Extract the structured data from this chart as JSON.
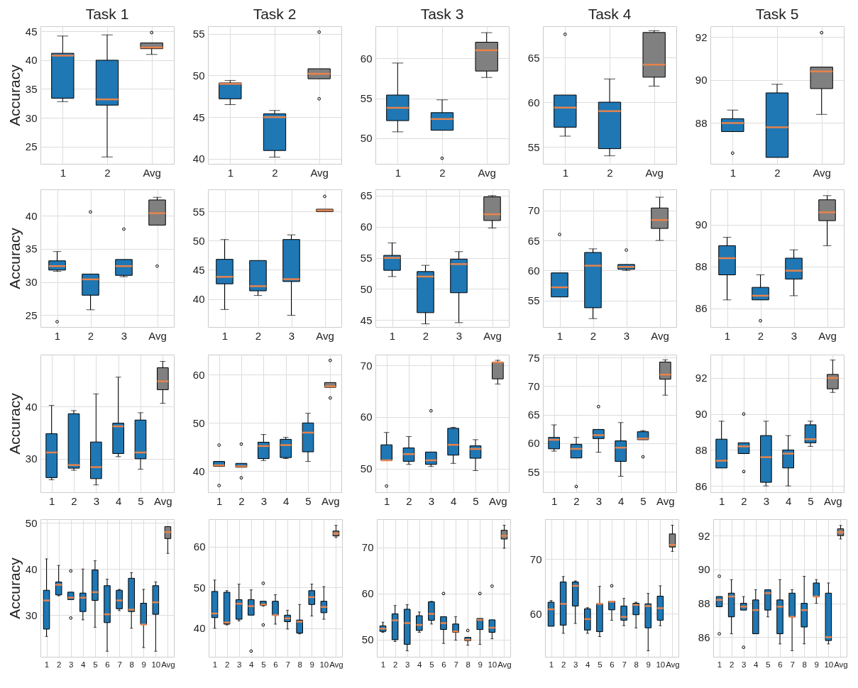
{
  "chart_data": [
    {
      "type": "box",
      "title": "Task 1",
      "ylabel": "Accuracy",
      "categories": [
        "1",
        "2",
        "Avg"
      ],
      "colors": [
        "#1f77b4",
        "#1f77b4",
        "#808080"
      ],
      "ylim": [
        22.0,
        45.9
      ],
      "yticks": [
        25,
        30,
        35,
        40,
        45
      ],
      "grid": true,
      "boxes": [
        {
          "low": 32.8,
          "q1": 33.4,
          "median": 40.8,
          "q3": 41.2,
          "high": 44.2
        },
        {
          "low": 23.2,
          "q1": 32.2,
          "median": 33.2,
          "q3": 40.0,
          "high": 44.4
        },
        {
          "low": 41.0,
          "q1": 42.0,
          "median": 42.2,
          "q3": 43.0,
          "high": 43.0,
          "outliers": [
            44.8
          ]
        }
      ]
    },
    {
      "type": "box",
      "title": "Task 2",
      "categories": [
        "1",
        "2",
        "Avg"
      ],
      "colors": [
        "#1f77b4",
        "#1f77b4",
        "#808080"
      ],
      "ylim": [
        39.4,
        55.9
      ],
      "yticks": [
        40,
        45,
        50,
        55
      ],
      "grid": true,
      "boxes": [
        {
          "low": 46.5,
          "q1": 47.2,
          "median": 49.0,
          "q3": 49.1,
          "high": 49.4
        },
        {
          "low": 40.2,
          "q1": 41.0,
          "median": 45.0,
          "q3": 45.4,
          "high": 45.8
        },
        {
          "low": 49.6,
          "q1": 49.6,
          "median": 50.2,
          "q3": 50.8,
          "high": 50.8,
          "outliers": [
            55.2,
            47.2
          ]
        }
      ]
    },
    {
      "type": "box",
      "title": "Task 3",
      "categories": [
        "1",
        "2",
        "Avg"
      ],
      "colors": [
        "#1f77b4",
        "#1f77b4",
        "#808080"
      ],
      "ylim": [
        46.8,
        64.0
      ],
      "yticks": [
        50,
        55,
        60
      ],
      "grid": true,
      "boxes": [
        {
          "low": 50.8,
          "q1": 52.2,
          "median": 53.8,
          "q3": 55.4,
          "high": 59.4
        },
        {
          "low": 51.0,
          "q1": 51.0,
          "median": 52.4,
          "q3": 53.2,
          "high": 54.8,
          "outliers": [
            47.5
          ]
        },
        {
          "low": 57.6,
          "q1": 58.4,
          "median": 61.0,
          "q3": 62.0,
          "high": 63.2
        }
      ]
    },
    {
      "type": "box",
      "title": "Task 4",
      "categories": [
        "1",
        "2",
        "Avg"
      ],
      "colors": [
        "#1f77b4",
        "#1f77b4",
        "#808080"
      ],
      "ylim": [
        53.1,
        68.5
      ],
      "yticks": [
        55,
        60,
        65
      ],
      "grid": true,
      "boxes": [
        {
          "low": 56.2,
          "q1": 57.2,
          "median": 59.4,
          "q3": 60.8,
          "high": 60.8,
          "outliers": [
            67.6
          ]
        },
        {
          "low": 54.0,
          "q1": 54.8,
          "median": 59.0,
          "q3": 60.0,
          "high": 62.6
        },
        {
          "low": 61.8,
          "q1": 62.8,
          "median": 64.2,
          "q3": 67.8,
          "high": 68.0
        }
      ]
    },
    {
      "type": "box",
      "title": "Task 5",
      "categories": [
        "1",
        "2",
        "Avg"
      ],
      "colors": [
        "#1f77b4",
        "#1f77b4",
        "#808080"
      ],
      "ylim": [
        86.1,
        92.5
      ],
      "yticks": [
        88,
        90,
        92
      ],
      "grid": true,
      "boxes": [
        {
          "low": 87.6,
          "q1": 87.6,
          "median": 88.0,
          "q3": 88.2,
          "high": 88.6,
          "outliers": [
            86.6
          ]
        },
        {
          "low": 86.4,
          "q1": 86.4,
          "median": 87.8,
          "q3": 89.4,
          "high": 89.8
        },
        {
          "low": 88.4,
          "q1": 89.6,
          "median": 90.4,
          "q3": 90.6,
          "high": 90.6,
          "outliers": [
            92.2
          ]
        }
      ]
    },
    {
      "type": "box",
      "ylabel": "Accuracy",
      "categories": [
        "1",
        "2",
        "3",
        "Avg"
      ],
      "colors": [
        "#1f77b4",
        "#1f77b4",
        "#1f77b4",
        "#808080"
      ],
      "ylim": [
        23.2,
        44.0
      ],
      "yticks": [
        25,
        30,
        35,
        40
      ],
      "grid": true,
      "boxes": [
        {
          "low": 31.6,
          "q1": 31.8,
          "median": 32.4,
          "q3": 33.2,
          "high": 34.6,
          "outliers": [
            24.0
          ]
        },
        {
          "low": 25.8,
          "q1": 28.0,
          "median": 30.4,
          "q3": 31.2,
          "high": 31.2,
          "outliers": [
            40.6
          ]
        },
        {
          "low": 30.8,
          "q1": 31.0,
          "median": 32.4,
          "q3": 33.4,
          "high": 33.4,
          "outliers": [
            38.0
          ]
        },
        {
          "low": 38.6,
          "q1": 38.6,
          "median": 40.4,
          "q3": 42.4,
          "high": 42.8,
          "outliers": [
            32.4
          ]
        }
      ]
    },
    {
      "type": "box",
      "categories": [
        "1",
        "2",
        "3",
        "Avg"
      ],
      "colors": [
        "#1f77b4",
        "#1f77b4",
        "#1f77b4",
        "#808080"
      ],
      "ylim": [
        35.2,
        58.8
      ],
      "yticks": [
        40,
        45,
        50,
        55
      ],
      "grid": true,
      "boxes": [
        {
          "low": 38.2,
          "q1": 42.6,
          "median": 43.8,
          "q3": 46.8,
          "high": 50.2
        },
        {
          "low": 40.6,
          "q1": 41.4,
          "median": 42.2,
          "q3": 46.6,
          "high": 46.6
        },
        {
          "low": 37.2,
          "q1": 43.0,
          "median": 43.4,
          "q3": 50.2,
          "high": 51.0
        },
        {
          "low": 55.0,
          "q1": 55.0,
          "median": 55.2,
          "q3": 55.4,
          "high": 55.4,
          "outliers": [
            57.6
          ]
        }
      ]
    },
    {
      "type": "box",
      "categories": [
        "1",
        "2",
        "3",
        "Avg"
      ],
      "colors": [
        "#1f77b4",
        "#1f77b4",
        "#1f77b4",
        "#808080"
      ],
      "ylim": [
        43.9,
        66.0
      ],
      "yticks": [
        45,
        50,
        55,
        60,
        65
      ],
      "grid": true,
      "boxes": [
        {
          "low": 52.0,
          "q1": 53.0,
          "median": 55.0,
          "q3": 55.4,
          "high": 57.4
        },
        {
          "low": 44.4,
          "q1": 46.2,
          "median": 52.0,
          "q3": 52.8,
          "high": 53.8
        },
        {
          "low": 44.6,
          "q1": 49.4,
          "median": 54.0,
          "q3": 54.8,
          "high": 56.0
        },
        {
          "low": 59.8,
          "q1": 61.0,
          "median": 62.0,
          "q3": 64.8,
          "high": 65.0
        }
      ]
    },
    {
      "type": "box",
      "categories": [
        "1",
        "2",
        "3",
        "Avg"
      ],
      "colors": [
        "#1f77b4",
        "#1f77b4",
        "#1f77b4",
        "#808080"
      ],
      "ylim": [
        50.6,
        73.5
      ],
      "yticks": [
        55,
        60,
        65,
        70
      ],
      "grid": true,
      "boxes": [
        {
          "low": 55.6,
          "q1": 55.6,
          "median": 57.2,
          "q3": 59.6,
          "high": 59.6,
          "outliers": [
            66.0
          ]
        },
        {
          "low": 52.0,
          "q1": 53.8,
          "median": 60.8,
          "q3": 63.0,
          "high": 63.6
        },
        {
          "low": 60.0,
          "q1": 60.2,
          "median": 60.6,
          "q3": 61.0,
          "high": 61.0,
          "outliers": [
            63.4
          ]
        },
        {
          "low": 65.0,
          "q1": 67.0,
          "median": 68.4,
          "q3": 70.4,
          "high": 72.2
        }
      ]
    },
    {
      "type": "box",
      "categories": [
        "1",
        "2",
        "3",
        "Avg"
      ],
      "colors": [
        "#1f77b4",
        "#1f77b4",
        "#1f77b4",
        "#808080"
      ],
      "ylim": [
        85.1,
        91.7
      ],
      "yticks": [
        86,
        88,
        90
      ],
      "grid": true,
      "boxes": [
        {
          "low": 86.4,
          "q1": 87.6,
          "median": 88.4,
          "q3": 89.0,
          "high": 89.4
        },
        {
          "low": 86.4,
          "q1": 86.4,
          "median": 86.6,
          "q3": 87.0,
          "high": 87.6,
          "outliers": [
            85.4
          ]
        },
        {
          "low": 86.6,
          "q1": 87.4,
          "median": 87.8,
          "q3": 88.4,
          "high": 88.8
        },
        {
          "low": 89.0,
          "q1": 90.2,
          "median": 90.6,
          "q3": 91.2,
          "high": 91.4
        }
      ]
    },
    {
      "type": "box",
      "ylabel": "Accuracy",
      "categories": [
        "1",
        "2",
        "3",
        "4",
        "5",
        "Avg"
      ],
      "colors": [
        "#1f77b4",
        "#1f77b4",
        "#1f77b4",
        "#1f77b4",
        "#1f77b4",
        "#808080"
      ],
      "ylim": [
        23.6,
        49.9
      ],
      "yticks": [
        30,
        40
      ],
      "grid": true,
      "boxes": [
        {
          "low": 26.0,
          "q1": 26.4,
          "median": 31.2,
          "q3": 34.8,
          "high": 40.2
        },
        {
          "low": 27.8,
          "q1": 28.2,
          "median": 28.8,
          "q3": 38.6,
          "high": 39.2
        },
        {
          "low": 25.0,
          "q1": 26.2,
          "median": 28.4,
          "q3": 33.2,
          "high": 42.4
        },
        {
          "low": 30.4,
          "q1": 31.0,
          "median": 36.2,
          "q3": 36.8,
          "high": 45.6
        },
        {
          "low": 28.0,
          "q1": 30.0,
          "median": 31.2,
          "q3": 37.4,
          "high": 38.8
        },
        {
          "low": 40.6,
          "q1": 43.2,
          "median": 44.8,
          "q3": 47.4,
          "high": 48.6
        }
      ]
    },
    {
      "type": "box",
      "categories": [
        "1",
        "2",
        "3",
        "4",
        "5",
        "Avg"
      ],
      "colors": [
        "#1f77b4",
        "#1f77b4",
        "#1f77b4",
        "#1f77b4",
        "#1f77b4",
        "#808080"
      ],
      "ylim": [
        35.6,
        64.2
      ],
      "yticks": [
        40,
        50,
        60
      ],
      "grid": true,
      "boxes": [
        {
          "low": 41.0,
          "q1": 41.0,
          "median": 41.2,
          "q3": 42.0,
          "high": 42.0,
          "outliers": [
            45.4,
            37.0
          ]
        },
        {
          "low": 40.8,
          "q1": 40.8,
          "median": 41.0,
          "q3": 41.6,
          "high": 41.6,
          "outliers": [
            45.6,
            38.6
          ]
        },
        {
          "low": 42.2,
          "q1": 42.6,
          "median": 45.2,
          "q3": 46.0,
          "high": 47.6
        },
        {
          "low": 42.6,
          "q1": 42.8,
          "median": 45.4,
          "q3": 46.6,
          "high": 47.0
        },
        {
          "low": 42.0,
          "q1": 44.0,
          "median": 48.0,
          "q3": 50.0,
          "high": 52.0
        },
        {
          "low": 57.4,
          "q1": 57.4,
          "median": 57.6,
          "q3": 58.4,
          "high": 58.4,
          "outliers": [
            63.0,
            55.2
          ]
        }
      ]
    },
    {
      "type": "box",
      "categories": [
        "1",
        "2",
        "3",
        "4",
        "5",
        "Avg"
      ],
      "colors": [
        "#1f77b4",
        "#1f77b4",
        "#1f77b4",
        "#1f77b4",
        "#1f77b4",
        "#808080"
      ],
      "ylim": [
        45.4,
        72.1
      ],
      "yticks": [
        50,
        60,
        70
      ],
      "grid": true,
      "boxes": [
        {
          "low": 51.6,
          "q1": 51.6,
          "median": 51.6,
          "q3": 54.6,
          "high": 57.0,
          "outliers": [
            46.6
          ]
        },
        {
          "low": 50.8,
          "q1": 51.4,
          "median": 52.8,
          "q3": 54.0,
          "high": 56.2
        },
        {
          "low": 50.4,
          "q1": 50.8,
          "median": 51.6,
          "q3": 53.2,
          "high": 53.2,
          "outliers": [
            61.2
          ]
        },
        {
          "low": 51.0,
          "q1": 52.6,
          "median": 54.6,
          "q3": 57.8,
          "high": 58.0
        },
        {
          "low": 49.6,
          "q1": 52.0,
          "median": 53.8,
          "q3": 54.4,
          "high": 55.6
        },
        {
          "low": 66.4,
          "q1": 67.4,
          "median": 70.6,
          "q3": 70.6,
          "high": 71.0
        }
      ]
    },
    {
      "type": "box",
      "categories": [
        "1",
        "2",
        "3",
        "4",
        "5",
        "Avg"
      ],
      "colors": [
        "#1f77b4",
        "#1f77b4",
        "#1f77b4",
        "#1f77b4",
        "#1f77b4",
        "#808080"
      ],
      "ylim": [
        51.4,
        75.5
      ],
      "yticks": [
        55,
        60,
        65,
        70,
        75
      ],
      "grid": true,
      "boxes": [
        {
          "low": 58.6,
          "q1": 59.0,
          "median": 60.6,
          "q3": 61.0,
          "high": 63.2
        },
        {
          "low": 57.4,
          "q1": 57.4,
          "median": 59.0,
          "q3": 59.8,
          "high": 61.0,
          "outliers": [
            52.4
          ]
        },
        {
          "low": 58.4,
          "q1": 60.8,
          "median": 61.4,
          "q3": 62.4,
          "high": 62.4,
          "outliers": [
            66.4
          ]
        },
        {
          "low": 54.2,
          "q1": 56.8,
          "median": 59.2,
          "q3": 60.4,
          "high": 63.6
        },
        {
          "low": 60.6,
          "q1": 60.6,
          "median": 60.8,
          "q3": 62.0,
          "high": 62.2,
          "outliers": [
            57.6
          ]
        },
        {
          "low": 68.4,
          "q1": 71.2,
          "median": 72.0,
          "q3": 74.2,
          "high": 74.6
        }
      ]
    },
    {
      "type": "box",
      "categories": [
        "1",
        "2",
        "3",
        "4",
        "5",
        "Avg"
      ],
      "colors": [
        "#1f77b4",
        "#1f77b4",
        "#1f77b4",
        "#1f77b4",
        "#1f77b4",
        "#808080"
      ],
      "ylim": [
        85.65,
        93.3
      ],
      "yticks": [
        86,
        88,
        90,
        92
      ],
      "grid": true,
      "boxes": [
        {
          "low": 87.0,
          "q1": 87.0,
          "median": 87.4,
          "q3": 88.6,
          "high": 89.6
        },
        {
          "low": 87.8,
          "q1": 87.8,
          "median": 88.2,
          "q3": 88.4,
          "high": 88.4,
          "outliers": [
            90.0,
            86.8
          ]
        },
        {
          "low": 86.0,
          "q1": 86.2,
          "median": 87.6,
          "q3": 88.8,
          "high": 89.6
        },
        {
          "low": 86.0,
          "q1": 87.0,
          "median": 87.8,
          "q3": 88.0,
          "high": 88.8
        },
        {
          "low": 88.2,
          "q1": 88.4,
          "median": 88.6,
          "q3": 89.4,
          "high": 89.6
        },
        {
          "low": 91.2,
          "q1": 91.4,
          "median": 92.0,
          "q3": 92.2,
          "high": 93.0
        }
      ]
    },
    {
      "type": "box",
      "ylabel": "Accuracy",
      "categories": [
        "1",
        "2",
        "3",
        "4",
        "5",
        "6",
        "7",
        "8",
        "9",
        "10",
        "Avg"
      ],
      "colors": [
        "#1f77b4",
        "#1f77b4",
        "#1f77b4",
        "#1f77b4",
        "#1f77b4",
        "#1f77b4",
        "#1f77b4",
        "#1f77b4",
        "#1f77b4",
        "#1f77b4",
        "#808080"
      ],
      "ylim": [
        21.0,
        50.8
      ],
      "yticks": [
        30,
        40,
        50
      ],
      "grid": true,
      "boxes": [
        {
          "low": 25.4,
          "q1": 27.0,
          "median": 33.2,
          "q3": 35.4,
          "high": 42.2
        },
        {
          "low": 34.2,
          "q1": 34.4,
          "median": 36.6,
          "q3": 37.2,
          "high": 40.8
        },
        {
          "low": 33.4,
          "q1": 33.4,
          "median": 33.8,
          "q3": 35.0,
          "high": 35.0,
          "outliers": [
            39.6,
            29.4
          ]
        },
        {
          "low": 29.0,
          "q1": 30.8,
          "median": 33.8,
          "q3": 34.8,
          "high": 40.0
        },
        {
          "low": 27.4,
          "q1": 33.2,
          "median": 35.0,
          "q3": 39.8,
          "high": 41.8
        },
        {
          "low": 22.2,
          "q1": 28.4,
          "median": 30.2,
          "q3": 36.4,
          "high": 37.8
        },
        {
          "low": 31.0,
          "q1": 31.4,
          "median": 33.2,
          "q3": 35.4,
          "high": 35.6
        },
        {
          "low": 27.2,
          "q1": 30.8,
          "median": 31.2,
          "q3": 38.0,
          "high": 39.2
        },
        {
          "low": 23.0,
          "q1": 28.0,
          "median": 28.0,
          "q3": 32.6,
          "high": 35.6
        },
        {
          "low": 22.2,
          "q1": 30.2,
          "median": 32.8,
          "q3": 36.4,
          "high": 37.2
        },
        {
          "low": 43.4,
          "q1": 46.6,
          "median": 48.0,
          "q3": 49.2,
          "high": 49.2
        }
      ]
    },
    {
      "type": "box",
      "categories": [
        "1",
        "2",
        "3",
        "4",
        "5",
        "6",
        "7",
        "8",
        "9",
        "10",
        "Avg"
      ],
      "colors": [
        "#1f77b4",
        "#1f77b4",
        "#1f77b4",
        "#1f77b4",
        "#1f77b4",
        "#1f77b4",
        "#1f77b4",
        "#1f77b4",
        "#1f77b4",
        "#1f77b4",
        "#808080"
      ],
      "ylim": [
        33.0,
        66.7
      ],
      "yticks": [
        40,
        50,
        60
      ],
      "grid": true,
      "boxes": [
        {
          "low": 40.0,
          "q1": 42.6,
          "median": 43.6,
          "q3": 49.0,
          "high": 51.8
        },
        {
          "low": 40.8,
          "q1": 41.0,
          "median": 41.4,
          "q3": 48.8,
          "high": 49.2
        },
        {
          "low": 41.8,
          "q1": 42.2,
          "median": 46.0,
          "q3": 47.0,
          "high": 50.8
        },
        {
          "low": 43.2,
          "q1": 43.2,
          "median": 45.4,
          "q3": 47.0,
          "high": 49.4,
          "outliers": [
            34.4
          ]
        },
        {
          "low": 45.4,
          "q1": 45.6,
          "median": 45.8,
          "q3": 46.6,
          "high": 46.6,
          "outliers": [
            51.0,
            40.8
          ]
        },
        {
          "low": 41.0,
          "q1": 43.2,
          "median": 43.2,
          "q3": 46.6,
          "high": 48.2
        },
        {
          "low": 39.8,
          "q1": 41.6,
          "median": 42.4,
          "q3": 43.2,
          "high": 44.4
        },
        {
          "low": 38.6,
          "q1": 38.8,
          "median": 41.6,
          "q3": 42.0,
          "high": 45.8
        },
        {
          "low": 43.0,
          "q1": 45.8,
          "median": 47.6,
          "q3": 49.2,
          "high": 50.8
        },
        {
          "low": 42.2,
          "q1": 43.8,
          "median": 45.2,
          "q3": 46.6,
          "high": 50.2
        },
        {
          "low": 62.2,
          "q1": 62.6,
          "median": 63.2,
          "q3": 63.8,
          "high": 65.2
        }
      ]
    },
    {
      "type": "box",
      "categories": [
        "1",
        "2",
        "3",
        "4",
        "5",
        "6",
        "7",
        "8",
        "9",
        "10",
        "Avg"
      ],
      "colors": [
        "#1f77b4",
        "#1f77b4",
        "#1f77b4",
        "#1f77b4",
        "#1f77b4",
        "#1f77b4",
        "#1f77b4",
        "#1f77b4",
        "#1f77b4",
        "#1f77b4",
        "#808080"
      ],
      "ylim": [
        46.3,
        76.1
      ],
      "yticks": [
        50,
        60,
        70
      ],
      "grid": true,
      "boxes": [
        {
          "low": 51.6,
          "q1": 51.8,
          "median": 52.4,
          "q3": 53.0,
          "high": 53.8
        },
        {
          "low": 49.6,
          "q1": 50.0,
          "median": 54.2,
          "q3": 55.6,
          "high": 57.4
        },
        {
          "low": 47.6,
          "q1": 49.0,
          "median": 53.6,
          "q3": 56.6,
          "high": 57.6
        },
        {
          "low": 51.6,
          "q1": 52.0,
          "median": 53.2,
          "q3": 55.2,
          "high": 56.0
        },
        {
          "low": 53.4,
          "q1": 54.2,
          "median": 55.6,
          "q3": 58.2,
          "high": 58.3
        },
        {
          "low": 49.2,
          "q1": 52.2,
          "median": 53.6,
          "q3": 55.0,
          "high": 55.0,
          "outliers": [
            60.0
          ]
        },
        {
          "low": 49.9,
          "q1": 51.6,
          "median": 51.8,
          "q3": 53.4,
          "high": 55.0
        },
        {
          "low": 48.8,
          "q1": 49.8,
          "median": 50.0,
          "q3": 50.5,
          "high": 50.5,
          "outliers": [
            52.0
          ]
        },
        {
          "low": 49.0,
          "q1": 52.2,
          "median": 54.3,
          "q3": 54.6,
          "high": 54.6,
          "outliers": [
            60.0
          ]
        },
        {
          "low": 50.2,
          "q1": 51.6,
          "median": 52.6,
          "q3": 54.3,
          "high": 54.3,
          "outliers": [
            61.6
          ]
        },
        {
          "low": 69.8,
          "q1": 71.8,
          "median": 72.5,
          "q3": 73.7,
          "high": 74.8
        }
      ]
    },
    {
      "type": "box",
      "categories": [
        "1",
        "2",
        "3",
        "4",
        "5",
        "6",
        "7",
        "8",
        "9",
        "10",
        "Avg"
      ],
      "colors": [
        "#1f77b4",
        "#1f77b4",
        "#1f77b4",
        "#1f77b4",
        "#1f77b4",
        "#1f77b4",
        "#1f77b4",
        "#1f77b4",
        "#1f77b4",
        "#1f77b4",
        "#808080"
      ],
      "ylim": [
        52.1,
        77.3
      ],
      "yticks": [
        60,
        70
      ],
      "grid": true,
      "boxes": [
        {
          "low": 57.7,
          "q1": 57.7,
          "median": 60.8,
          "q3": 62.1,
          "high": 62.4
        },
        {
          "low": 56.4,
          "q1": 57.9,
          "median": 61.8,
          "q3": 65.8,
          "high": 66.8
        },
        {
          "low": 58.2,
          "q1": 61.4,
          "median": 65.1,
          "q3": 65.8,
          "high": 66.0
        },
        {
          "low": 56.4,
          "q1": 57.0,
          "median": 59.0,
          "q3": 60.9,
          "high": 61.1
        },
        {
          "low": 55.8,
          "q1": 56.7,
          "median": 61.8,
          "q3": 61.8,
          "high": 65.0
        },
        {
          "low": 58.8,
          "q1": 60.7,
          "median": 62.2,
          "q3": 62.3,
          "high": 62.3,
          "outliers": [
            65.1
          ]
        },
        {
          "low": 57.8,
          "q1": 58.8,
          "median": 59.4,
          "q3": 61.4,
          "high": 62.8
        },
        {
          "low": 57.4,
          "q1": 59.8,
          "median": 61.6,
          "q3": 61.9,
          "high": 62.1
        },
        {
          "low": 53.2,
          "q1": 57.4,
          "median": 61.4,
          "q3": 61.8,
          "high": 63.7
        },
        {
          "low": 57.8,
          "q1": 58.8,
          "median": 61.0,
          "q3": 63.2,
          "high": 65.1
        },
        {
          "low": 71.4,
          "q1": 72.2,
          "median": 72.6,
          "q3": 74.6,
          "high": 76.2
        }
      ]
    },
    {
      "type": "box",
      "categories": [
        "1",
        "2",
        "3",
        "4",
        "5",
        "6",
        "7",
        "8",
        "9",
        "10",
        "Avg"
      ],
      "colors": [
        "#1f77b4",
        "#1f77b4",
        "#1f77b4",
        "#1f77b4",
        "#1f77b4",
        "#1f77b4",
        "#1f77b4",
        "#1f77b4",
        "#1f77b4",
        "#1f77b4",
        "#808080"
      ],
      "ylim": [
        84.84,
        92.97
      ],
      "yticks": [
        86,
        88,
        90,
        92
      ],
      "grid": true,
      "boxes": [
        {
          "low": 87.8,
          "q1": 87.8,
          "median": 88.2,
          "q3": 88.4,
          "high": 88.4,
          "outliers": [
            89.6,
            86.2
          ]
        },
        {
          "low": 86.2,
          "q1": 87.2,
          "median": 88.4,
          "q3": 88.6,
          "high": 89.4
        },
        {
          "low": 87.6,
          "q1": 87.6,
          "median": 87.8,
          "q3": 88.0,
          "high": 88.4,
          "outliers": [
            85.4
          ]
        },
        {
          "low": 86.2,
          "q1": 86.2,
          "median": 87.6,
          "q3": 88.2,
          "high": 88.8
        },
        {
          "low": 87.2,
          "q1": 87.6,
          "median": 88.6,
          "q3": 88.8,
          "high": 88.8
        },
        {
          "low": 85.6,
          "q1": 86.2,
          "median": 87.8,
          "q3": 88.2,
          "high": 89.4
        },
        {
          "low": 85.2,
          "q1": 87.2,
          "median": 87.2,
          "q3": 88.6,
          "high": 88.8
        },
        {
          "low": 85.6,
          "q1": 86.6,
          "median": 87.6,
          "q3": 88.0,
          "high": 89.6
        },
        {
          "low": 88.0,
          "q1": 88.4,
          "median": 88.4,
          "q3": 89.2,
          "high": 89.4
        },
        {
          "low": 85.6,
          "q1": 85.8,
          "median": 86.0,
          "q3": 88.6,
          "high": 89.2
        },
        {
          "low": 91.8,
          "q1": 92.0,
          "median": 92.2,
          "q3": 92.4,
          "high": 92.6
        }
      ]
    }
  ]
}
